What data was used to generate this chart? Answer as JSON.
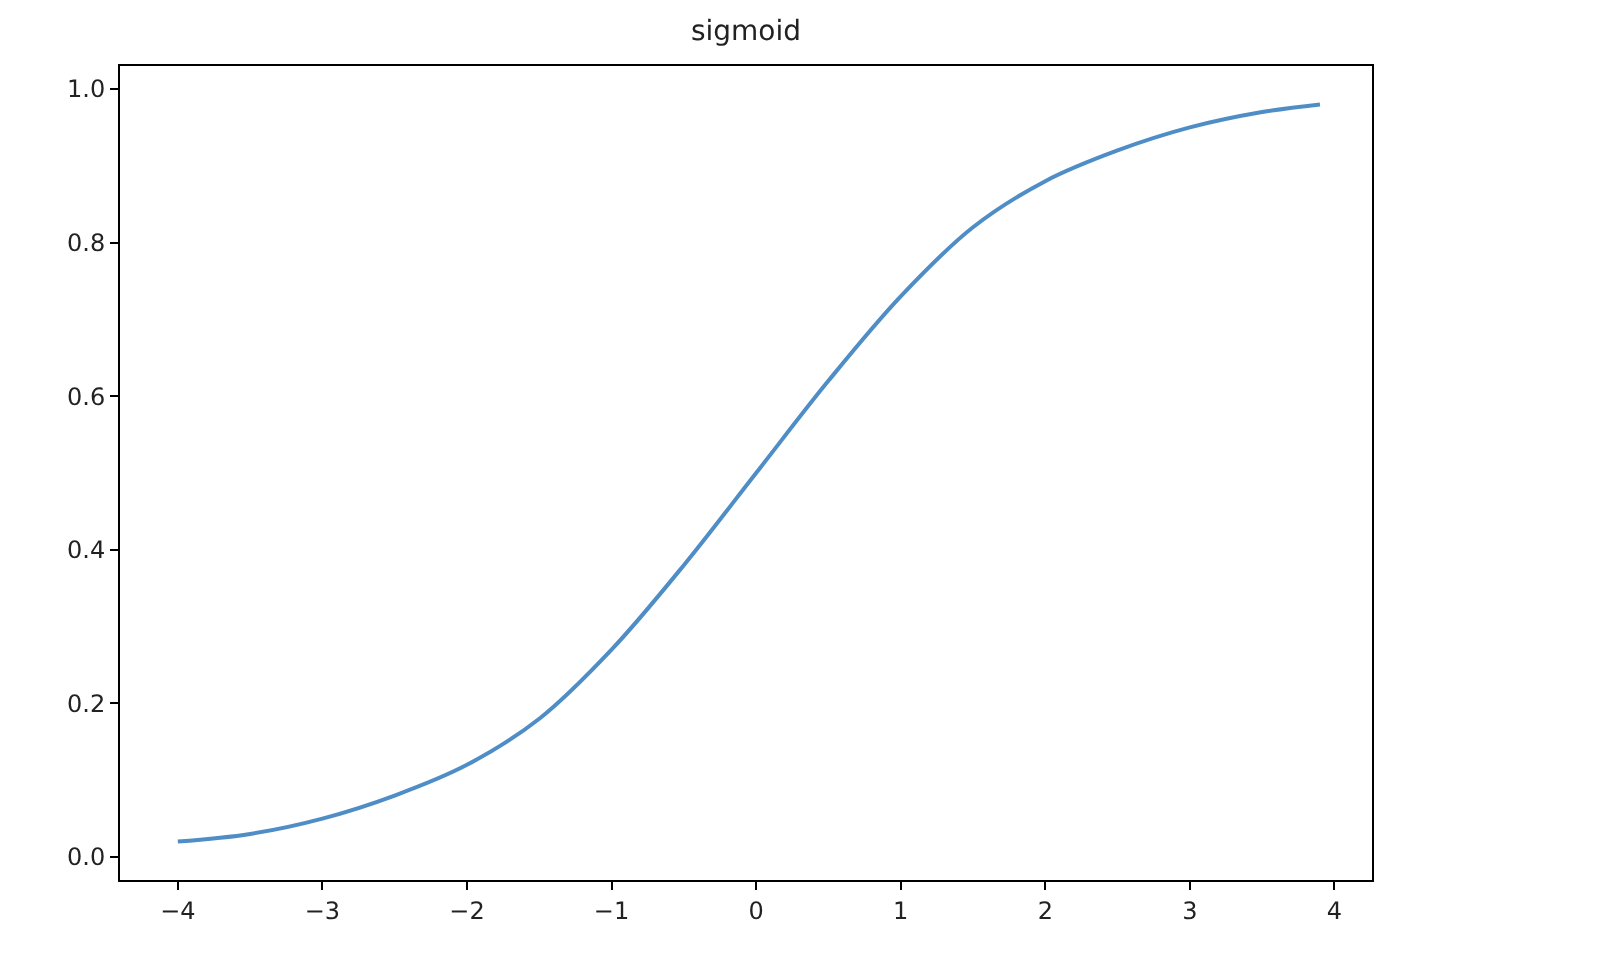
{
  "chart_data": {
    "type": "line",
    "title": "sigmoid",
    "x": [
      -4,
      -3.5,
      -3,
      -2.5,
      -2,
      -1.5,
      -1,
      -0.5,
      0,
      0.5,
      1,
      1.5,
      2,
      2.5,
      3,
      3.5,
      3.9
    ],
    "series": [
      {
        "color": "#4f8dc6",
        "values": [
          0.02,
          0.03,
          0.05,
          0.08,
          0.12,
          0.18,
          0.27,
          0.38,
          0.5,
          0.62,
          0.73,
          0.82,
          0.88,
          0.92,
          0.95,
          0.97,
          0.98
        ]
      }
    ],
    "xlim": [
      -4.4,
      4.26
    ],
    "xticks": [
      {
        "value": -4,
        "label": "−4"
      },
      {
        "value": -3,
        "label": "−3"
      },
      {
        "value": -2,
        "label": "−2"
      },
      {
        "value": -1,
        "label": "−1"
      },
      0,
      1,
      2,
      3,
      4
    ],
    "ylim": [
      -0.03,
      1.03
    ],
    "yticks": [
      {
        "value": 0,
        "label": "0.0"
      },
      0.2,
      0.4,
      0.6,
      0.8,
      {
        "value": 1,
        "label": "1.0"
      }
    ],
    "legend": false,
    "marker": "none",
    "line_style": "solid"
  }
}
